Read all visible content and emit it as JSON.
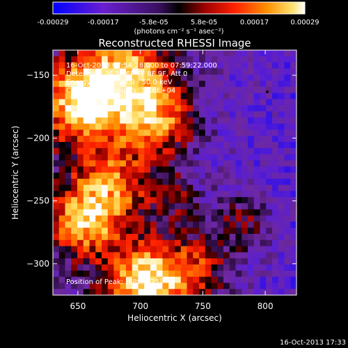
{
  "colorbar": {
    "ticks": [
      "-0.00029",
      "-0.00017",
      "-5.8e-05",
      "5.8e-05",
      "0.00017",
      "0.00029"
    ],
    "unit_label": "(photons cm⁻² s⁻¹ asec⁻²)"
  },
  "title": "Reconstructed RHESSI Image",
  "annotations": [
    "16-Oct-2013 07:54:28.000 to 07:59:22.000",
    "Detectors: 3F 5F 6F 7F 8F 9F, Att 0",
    "Energy Range: 25.0 - 50.0 keV",
    "Clean    Total counts: 1.16E+04"
  ],
  "position_label": "Position of Peak: [689,-325]",
  "footer_timestamp": "16-Oct-2013 17:33",
  "colors": {
    "background": "#000000",
    "text": "#ffffff",
    "colormap": [
      "#0000ff",
      "#5a1ac8",
      "#7a22a0",
      "#000000",
      "#a00000",
      "#ff2000",
      "#ff8000",
      "#ffe060",
      "#ffffff"
    ]
  },
  "chart_data": {
    "type": "heatmap",
    "title": "Reconstructed RHESSI Image",
    "xlabel": "Heliocentric X (arcsec)",
    "ylabel": "Heliocentric Y (arcsec)",
    "xlim": [
      630,
      825
    ],
    "ylim": [
      -325,
      -130
    ],
    "x_ticks": [
      650,
      700,
      750,
      800
    ],
    "y_ticks": [
      -300,
      -250,
      -200,
      -150
    ],
    "value_range": [
      -0.00029,
      0.00029
    ],
    "peak_position": [
      689,
      -325
    ],
    "grid": false,
    "colorbar_position": "top"
  }
}
